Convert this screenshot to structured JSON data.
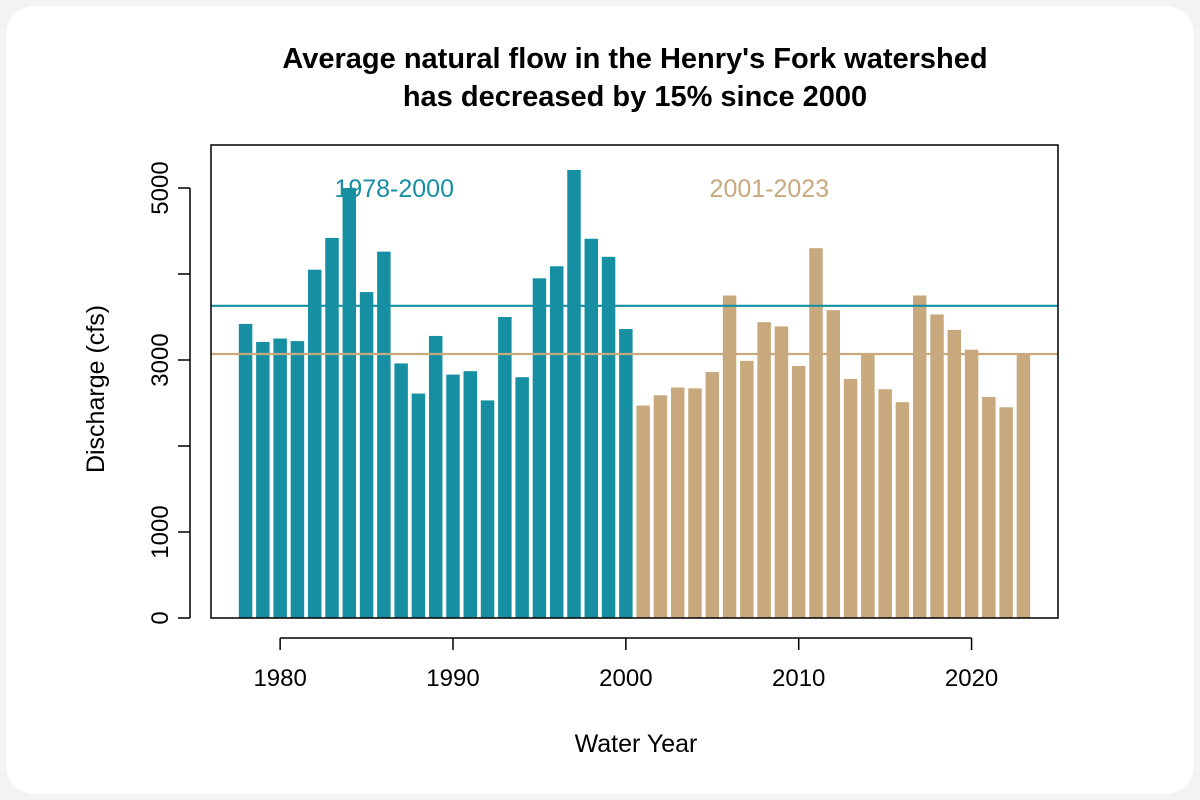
{
  "chart_data": {
    "type": "bar",
    "title_lines": [
      "Average natural flow in the Henry's Fork watershed",
      "has decreased by 15% since 2000"
    ],
    "xlabel": "Water Year",
    "ylabel": "Discharge (cfs)",
    "xlim": [
      1976,
      2025
    ],
    "ylim": [
      0,
      5500
    ],
    "x_ticks": [
      "1980",
      "1990",
      "2000",
      "2010",
      "2020"
    ],
    "y_ticks": [
      "0",
      "1000",
      "3000",
      "5000"
    ],
    "grid": false,
    "series": [
      {
        "name": "1978-2000",
        "color": "#168fa3",
        "mean": 3630,
        "x": [
          1978,
          1979,
          1980,
          1981,
          1982,
          1983,
          1984,
          1985,
          1986,
          1987,
          1988,
          1989,
          1990,
          1991,
          1992,
          1993,
          1994,
          1995,
          1996,
          1997,
          1998,
          1999,
          2000
        ],
        "values": [
          3420,
          3210,
          3250,
          3220,
          4050,
          4420,
          5000,
          3790,
          4260,
          2960,
          2610,
          3280,
          2830,
          2870,
          2530,
          3500,
          2800,
          3950,
          4090,
          5210,
          4410,
          4200,
          3360
        ]
      },
      {
        "name": "2001-2023",
        "color": "#c8a97d",
        "mean": 3070,
        "x": [
          2001,
          2002,
          2003,
          2004,
          2005,
          2006,
          2007,
          2008,
          2009,
          2010,
          2011,
          2012,
          2013,
          2014,
          2015,
          2016,
          2017,
          2018,
          2019,
          2020,
          2021,
          2022,
          2023
        ],
        "values": [
          2470,
          2590,
          2680,
          2670,
          2860,
          3750,
          2990,
          3440,
          3390,
          2930,
          4300,
          3580,
          2780,
          3070,
          2660,
          2510,
          3750,
          3530,
          3350,
          3120,
          2570,
          2450,
          3060
        ]
      }
    ]
  }
}
